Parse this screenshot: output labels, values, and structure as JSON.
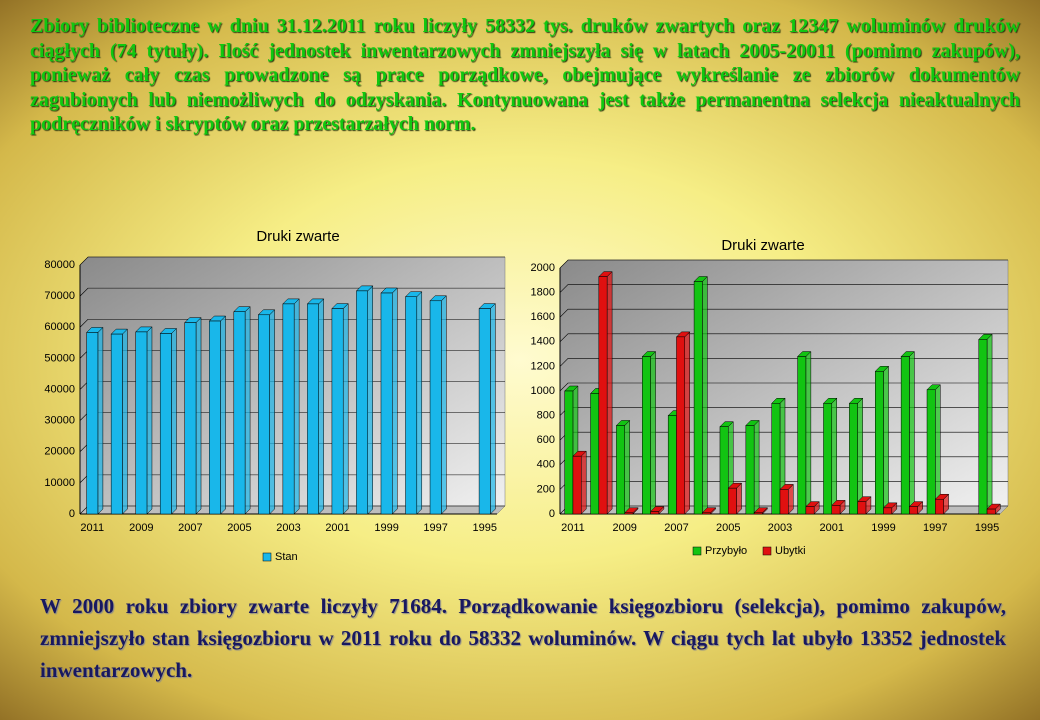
{
  "paragraphs": {
    "top": "Zbiory biblioteczne w dniu 31.12.2011 roku liczyły 58332 tys. druków zwartych oraz 12347 woluminów druków ciągłych (74 tytuły). Ilość jednostek inwentarzowych zmniejszyła się w latach 2005-20011 (pomimo zakupów), ponieważ cały czas prowadzone są prace porządkowe, obejmujące wykreślanie ze zbiorów dokumentów zagubionych lub niemożliwych do odzyskania. Kontynuowana jest także permanentna selekcja nieaktualnych podręczników i skryptów oraz przestarzałych norm.",
    "bottom": "W 2000 roku zbiory zwarte liczyły 71684. Porządkowanie księgozbioru (selekcja), pomimo zakupów, zmniejszyło stan księgozbioru w 2011 roku do 58332 woluminów. W ciągu tych lat ubyło 13352 jednostek inwentarzowych."
  },
  "chart_data": [
    {
      "type": "bar",
      "title": "Druki zwarte",
      "categories": [
        "2011",
        null,
        "2009",
        null,
        "2007",
        null,
        "2005",
        null,
        "2003",
        null,
        "2001",
        null,
        "1999",
        null,
        "1997",
        null,
        "1995"
      ],
      "series": [
        {
          "name": "Stan",
          "color": "#19b7ea",
          "values": [
            58332,
            57800,
            58500,
            58000,
            61500,
            62000,
            65000,
            64000,
            67500,
            67500,
            66000,
            71684,
            71000,
            69800,
            68500,
            null,
            66000
          ]
        }
      ],
      "ylim": [
        0,
        80000
      ],
      "yticks": [
        0,
        10000,
        20000,
        30000,
        40000,
        50000,
        60000,
        70000,
        80000
      ],
      "grid": true,
      "legend": "bottom"
    },
    {
      "type": "bar",
      "title": "Druki zwarte",
      "categories": [
        "2011",
        null,
        "2009",
        null,
        "2007",
        null,
        "2005",
        null,
        "2003",
        null,
        "2001",
        null,
        "1999",
        null,
        "1997",
        null,
        "1995"
      ],
      "series": [
        {
          "name": "Przybyło",
          "color": "#12c412",
          "values": [
            1000,
            980,
            720,
            1280,
            800,
            1890,
            710,
            720,
            900,
            1280,
            900,
            900,
            1160,
            1280,
            1010,
            null,
            1420
          ]
        },
        {
          "name": "Ubytki",
          "color": "#e01010",
          "values": [
            470,
            1930,
            10,
            20,
            1440,
            10,
            210,
            10,
            200,
            60,
            70,
            100,
            50,
            60,
            120,
            null,
            40
          ]
        }
      ],
      "ylim": [
        0,
        2000
      ],
      "yticks": [
        0,
        200,
        400,
        600,
        800,
        1000,
        1200,
        1400,
        1600,
        1800,
        2000
      ],
      "grid": true,
      "legend": "bottom"
    }
  ]
}
